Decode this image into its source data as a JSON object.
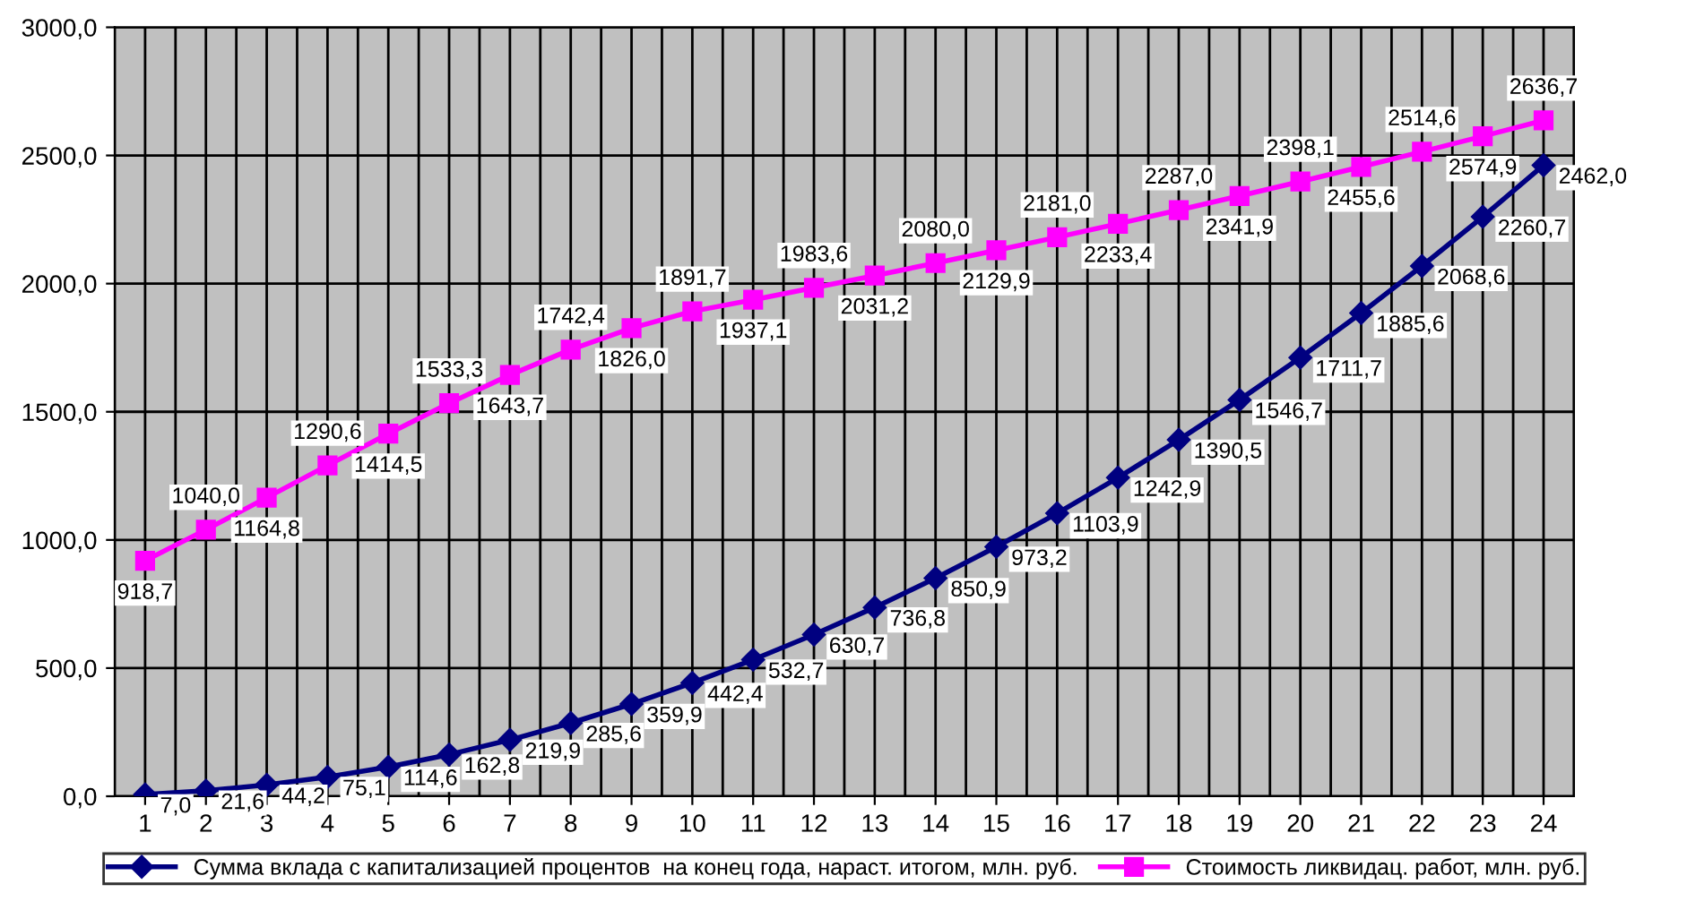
{
  "chart_data": {
    "type": "line",
    "categories": [
      "1",
      "2",
      "3",
      "4",
      "5",
      "6",
      "7",
      "8",
      "9",
      "10",
      "11",
      "12",
      "13",
      "14",
      "15",
      "16",
      "17",
      "18",
      "19",
      "20",
      "21",
      "22",
      "23",
      "24"
    ],
    "ylim": [
      0,
      3000
    ],
    "yticks": [
      {
        "value": 0,
        "label": "0,0"
      },
      {
        "value": 500,
        "label": "500,0"
      },
      {
        "value": 1000,
        "label": "1000,0"
      },
      {
        "value": 1500,
        "label": "1500,0"
      },
      {
        "value": 2000,
        "label": "2000,0"
      },
      {
        "value": 2500,
        "label": "2500,0"
      },
      {
        "value": 3000,
        "label": "3000,0"
      }
    ],
    "grid": true,
    "legend": "bottom",
    "series": [
      {
        "name": "Сумма вклада с капитализацией процентов  на конец года, нараст. итогом, млн. руб.",
        "color": "#000080",
        "marker": "diamond",
        "values": [
          7.0,
          21.6,
          44.2,
          75.1,
          114.6,
          162.8,
          219.9,
          285.6,
          359.9,
          442.4,
          532.7,
          630.7,
          736.8,
          850.9,
          973.2,
          1103.9,
          1242.9,
          1390.5,
          1546.7,
          1711.7,
          1885.6,
          2068.6,
          2260.7,
          2462.0
        ],
        "value_labels": [
          "7,0",
          "21,6",
          "44,2",
          "75,1",
          "114,6",
          "162,8",
          "219,9",
          "285,6",
          "359,9",
          "442,4",
          "532,7",
          "630,7",
          "736,8",
          "850,9",
          "973,2",
          "1103,9",
          "1242,9",
          "1390,5",
          "1546,7",
          "1711,7",
          "1885,6",
          "2068,6",
          "2260,7",
          "2462,0"
        ]
      },
      {
        "name": "Стоимость ликвидац. работ, млн. руб.",
        "color": "#ff00ff",
        "marker": "square",
        "values": [
          918.7,
          1040.0,
          1164.8,
          1290.6,
          1414.5,
          1533.3,
          1643.7,
          1742.4,
          1826.0,
          1891.7,
          1937.1,
          1983.6,
          2031.2,
          2080.0,
          2129.9,
          2181.0,
          2233.4,
          2287.0,
          2341.9,
          2398.1,
          2455.6,
          2514.6,
          2574.9,
          2636.7
        ],
        "value_labels": [
          "918,7",
          "1040,0",
          "1164,8",
          "1290,6",
          "1414,5",
          "1533,3",
          "1643,7",
          "1742,4",
          "1826,0",
          "1891,7",
          "1937,1",
          "1983,6",
          "2031,2",
          "2080,0",
          "2129,9",
          "2181,0",
          "2233,4",
          "2287,0",
          "2341,9",
          "2398,1",
          "2455,6",
          "2514,6",
          "2574,9",
          "2636,7"
        ]
      }
    ]
  }
}
